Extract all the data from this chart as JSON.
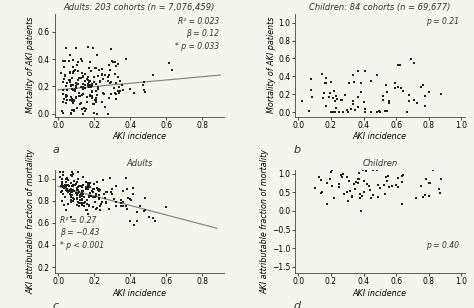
{
  "panel_a": {
    "title": "Adults: 203 cohorts (n = 7,076,459)",
    "xlabel": "AKI incidence",
    "ylabel": "Mortality of AKI patients",
    "annotation": "R² = 0.023\nβ = 0.12\n* p = 0.033",
    "label": "a",
    "xlim": [
      -0.02,
      0.92
    ],
    "ylim": [
      -0.02,
      0.73
    ],
    "xticks": [
      0,
      0.2,
      0.4,
      0.6,
      0.8
    ],
    "yticks": [
      0,
      0.2,
      0.4,
      0.6
    ],
    "seed": 42,
    "n_points": 203,
    "slope": 0.12,
    "intercept": 0.175
  },
  "panel_b": {
    "title": "Children: 84 cohorts (n = 69,677)",
    "xlabel": "AKI incidence",
    "ylabel": "Mortality of AKI patients",
    "annotation": "p = 0.21",
    "label": "b",
    "xlim": [
      -0.02,
      1.02
    ],
    "ylim": [
      -0.05,
      1.1
    ],
    "xticks": [
      0,
      0.2,
      0.4,
      0.6,
      0.8,
      1.0
    ],
    "yticks": [
      0,
      0.2,
      0.4,
      0.6,
      0.8,
      1.0
    ],
    "seed": 123,
    "n_points": 84,
    "slope": 0.0,
    "intercept": 0.2
  },
  "panel_c": {
    "title": "Adults",
    "xlabel": "AKI incidence",
    "ylabel": "AKI attributable fraction of mortality",
    "annotation": "R² = 0.27\nβ = −0.43\n* p < 0.001",
    "label": "c",
    "xlim": [
      -0.02,
      0.92
    ],
    "ylim": [
      0.15,
      1.08
    ],
    "xticks": [
      0,
      0.2,
      0.4,
      0.6,
      0.8
    ],
    "yticks": [
      0.2,
      0.4,
      0.6,
      0.8,
      1.0
    ],
    "seed": 77,
    "n_points": 203,
    "slope": -0.43,
    "intercept": 0.93
  },
  "panel_d": {
    "title": "Children",
    "xlabel": "AKI incidence",
    "ylabel": "AKI attributable fraction of mortality",
    "annotation": "p = 0.40",
    "label": "d",
    "xlim": [
      -0.02,
      1.02
    ],
    "ylim": [
      -1.65,
      1.1
    ],
    "xticks": [
      0,
      0.2,
      0.4,
      0.6,
      0.8,
      1.0
    ],
    "yticks": [
      -1.5,
      -1.0,
      -0.5,
      0,
      0.5,
      1.0
    ],
    "seed": 55,
    "n_points": 84,
    "slope": 0.0,
    "intercept": 0.75
  },
  "dot_color": "#222222",
  "dot_size": 3.5,
  "dot_marker": "s",
  "line_color": "#888888",
  "bg_color": "#f5f5f0",
  "panel_bg": "#f5f5f0",
  "title_fontsize": 6.0,
  "label_fontsize": 5.8,
  "tick_fontsize": 5.5,
  "annot_fontsize": 5.5,
  "panel_label_fontsize": 8
}
